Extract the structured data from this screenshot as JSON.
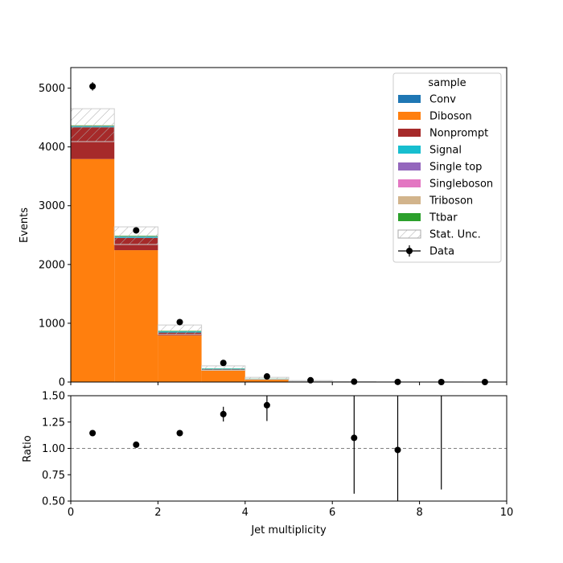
{
  "chart_data": [
    {
      "type": "bar",
      "stacked": true,
      "xlabel": "",
      "ylabel": "Events",
      "xlim": [
        0,
        10
      ],
      "ylim": [
        0,
        5350
      ],
      "yticks": [
        0,
        1000,
        2000,
        3000,
        4000,
        5000
      ],
      "bin_edges": [
        0,
        1,
        2,
        3,
        4,
        5,
        6,
        7,
        8,
        9,
        10
      ],
      "series": [
        {
          "name": "Conv",
          "color": "#1f77b4",
          "values": [
            4,
            3,
            1,
            0.5,
            0,
            0,
            0,
            0,
            0,
            0
          ]
        },
        {
          "name": "Diboson",
          "color": "#ff7f0e",
          "values": [
            3790,
            2240,
            790,
            200,
            45,
            10,
            2,
            0,
            0,
            0
          ]
        },
        {
          "name": "Nonprompt",
          "color": "#a62a2a",
          "values": [
            540,
            210,
            50,
            15,
            5,
            1,
            0,
            0,
            0,
            0
          ]
        },
        {
          "name": "Signal",
          "color": "#17becf",
          "values": [
            15,
            20,
            20,
            12,
            5,
            2,
            1,
            0,
            0,
            0
          ]
        },
        {
          "name": "Single top",
          "color": "#9467bd",
          "values": [
            3,
            2,
            1,
            0.5,
            0,
            0,
            0,
            0,
            0,
            0
          ]
        },
        {
          "name": "Singleboson",
          "color": "#e377c2",
          "values": [
            3,
            2,
            1,
            0.5,
            0,
            0,
            0,
            0,
            0,
            0
          ]
        },
        {
          "name": "Triboson",
          "color": "#d2b48c",
          "values": [
            2,
            2,
            1,
            0.5,
            0,
            0,
            0,
            0,
            0,
            0
          ]
        },
        {
          "name": "Ttbar",
          "color": "#2ca02c",
          "values": [
            10,
            10,
            8,
            4,
            2,
            1,
            0,
            0,
            0,
            0
          ]
        }
      ],
      "stat_unc": {
        "name": "Stat. Unc.",
        "lower": [
          4090,
          2340,
          810,
          200,
          45,
          10,
          2,
          0,
          0,
          0
        ],
        "upper": [
          4650,
          2640,
          970,
          275,
          80,
          25,
          8,
          3,
          2,
          1
        ]
      },
      "data_points": {
        "name": "Data",
        "x": [
          0.5,
          1.5,
          2.5,
          3.5,
          4.5,
          5.5,
          6.5,
          7.5,
          8.5,
          9.5
        ],
        "y": [
          5030,
          2580,
          1020,
          325,
          95,
          30,
          6,
          2,
          0,
          0
        ],
        "yerr": [
          71,
          51,
          32,
          18,
          10,
          5.5,
          2.5,
          1.4,
          0,
          0
        ]
      },
      "legend": {
        "title": "sample",
        "position": "top-right"
      }
    },
    {
      "type": "scatter",
      "xlabel": "Jet multiplicity",
      "ylabel": "Ratio",
      "xlim": [
        0,
        10
      ],
      "ylim": [
        0.5,
        1.5
      ],
      "xticks": [
        0,
        2,
        4,
        6,
        8,
        10
      ],
      "yticks": [
        0.5,
        0.75,
        1.0,
        1.25,
        1.5
      ],
      "ytick_labels": [
        "0.50",
        "0.75",
        "1.00",
        "1.25",
        "1.50"
      ],
      "reference_line": 1.0,
      "x": [
        0.5,
        1.5,
        2.5,
        3.5,
        4.5,
        6.5,
        7.5,
        8.5
      ],
      "y": [
        1.145,
        1.035,
        1.145,
        1.325,
        1.41,
        1.1,
        0.985,
        null
      ],
      "yerr_low": [
        0.015,
        0.015,
        0.025,
        0.07,
        0.15,
        0.53,
        0.6,
        null
      ],
      "yerr_high": [
        0.015,
        0.015,
        0.025,
        0.07,
        0.15,
        0.5,
        0.6,
        null
      ],
      "bar_only": [
        {
          "x": 8.5,
          "low": 0.61,
          "high": 1.5
        }
      ]
    }
  ]
}
